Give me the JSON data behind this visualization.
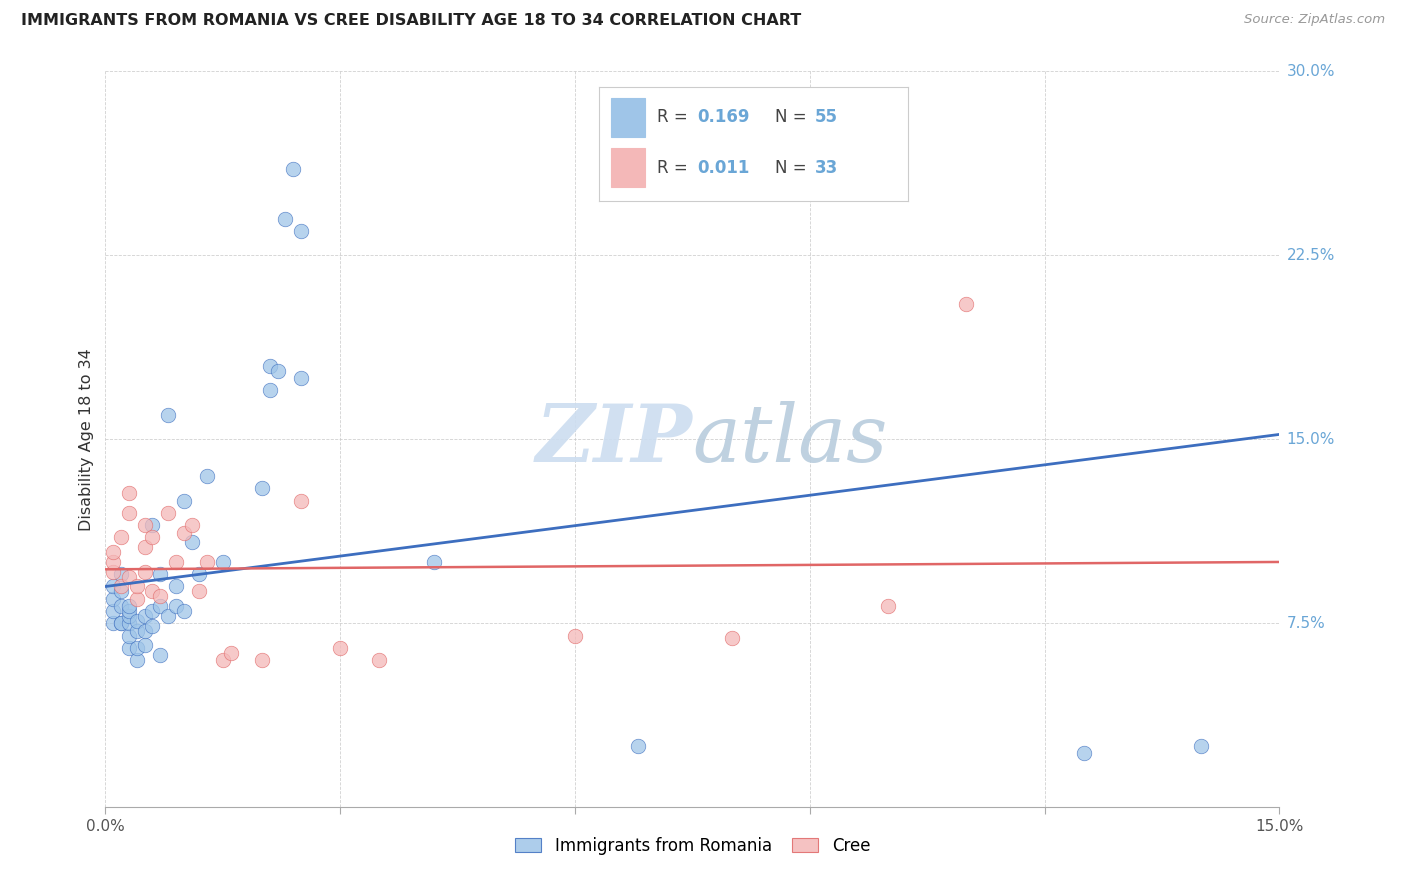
{
  "title": "IMMIGRANTS FROM ROMANIA VS CREE DISABILITY AGE 18 TO 34 CORRELATION CHART",
  "source": "Source: ZipAtlas.com",
  "ylabel": "Disability Age 18 to 34",
  "xlim": [
    0.0,
    0.15
  ],
  "ylim": [
    0.0,
    0.3
  ],
  "xticks": [
    0.0,
    0.03,
    0.06,
    0.09,
    0.12,
    0.15
  ],
  "xtick_labels": [
    "0.0%",
    "",
    "",
    "",
    "",
    "15.0%"
  ],
  "yticks": [
    0.0,
    0.075,
    0.15,
    0.225,
    0.3
  ],
  "ytick_labels": [
    "",
    "7.5%",
    "15.0%",
    "22.5%",
    "30.0%"
  ],
  "legend1_label": "Immigrants from Romania",
  "legend2_label": "Cree",
  "blue_color": "#9fc5e8",
  "pink_color": "#f4b8b8",
  "blue_line_color": "#3d6ebf",
  "pink_line_color": "#e06666",
  "ytick_color": "#6aa6d6",
  "watermark_color": "#ccddf0",
  "romania_x": [
    0.001,
    0.001,
    0.001,
    0.001,
    0.002,
    0.002,
    0.002,
    0.002,
    0.002,
    0.003,
    0.003,
    0.003,
    0.003,
    0.003,
    0.003,
    0.004,
    0.004,
    0.004,
    0.004,
    0.005,
    0.005,
    0.005,
    0.006,
    0.006,
    0.006,
    0.007,
    0.007,
    0.007,
    0.008,
    0.008,
    0.009,
    0.009,
    0.01,
    0.01,
    0.011,
    0.012,
    0.013,
    0.015,
    0.02,
    0.021,
    0.021,
    0.022,
    0.023,
    0.024,
    0.025,
    0.025,
    0.042,
    0.068,
    0.125,
    0.14
  ],
  "romania_y": [
    0.075,
    0.08,
    0.085,
    0.09,
    0.075,
    0.075,
    0.082,
    0.088,
    0.095,
    0.065,
    0.07,
    0.075,
    0.078,
    0.08,
    0.082,
    0.06,
    0.065,
    0.072,
    0.076,
    0.066,
    0.072,
    0.078,
    0.074,
    0.08,
    0.115,
    0.062,
    0.082,
    0.095,
    0.078,
    0.16,
    0.082,
    0.09,
    0.08,
    0.125,
    0.108,
    0.095,
    0.135,
    0.1,
    0.13,
    0.17,
    0.18,
    0.178,
    0.24,
    0.26,
    0.235,
    0.175,
    0.1,
    0.025,
    0.022,
    0.025
  ],
  "cree_x": [
    0.001,
    0.001,
    0.001,
    0.002,
    0.002,
    0.003,
    0.003,
    0.003,
    0.004,
    0.004,
    0.005,
    0.005,
    0.005,
    0.006,
    0.006,
    0.007,
    0.008,
    0.009,
    0.01,
    0.011,
    0.012,
    0.013,
    0.015,
    0.016,
    0.02,
    0.025,
    0.03,
    0.035,
    0.06,
    0.08,
    0.1,
    0.11
  ],
  "cree_y": [
    0.096,
    0.1,
    0.104,
    0.09,
    0.11,
    0.094,
    0.12,
    0.128,
    0.085,
    0.09,
    0.096,
    0.106,
    0.115,
    0.088,
    0.11,
    0.086,
    0.12,
    0.1,
    0.112,
    0.115,
    0.088,
    0.1,
    0.06,
    0.063,
    0.06,
    0.125,
    0.065,
    0.06,
    0.07,
    0.069,
    0.082,
    0.205
  ],
  "blue_trendline_x": [
    0.0,
    0.15
  ],
  "blue_trendline_y": [
    0.09,
    0.152
  ],
  "pink_trendline_x": [
    0.0,
    0.15
  ],
  "pink_trendline_y": [
    0.097,
    0.1
  ]
}
